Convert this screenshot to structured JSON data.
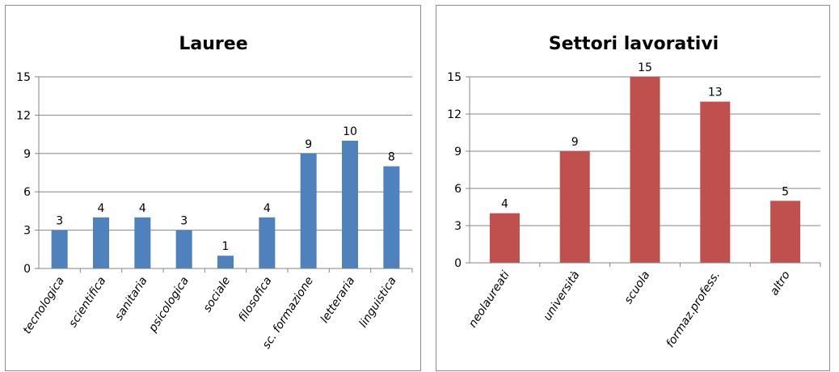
{
  "chart_data": [
    {
      "type": "bar",
      "title": "Lauree",
      "categories": [
        "tecnologica",
        "scientifica",
        "sanitaria",
        "psicologica",
        "sociale",
        "filosofica",
        "sc. formazione",
        "letteraria",
        "linguistica"
      ],
      "values": [
        3,
        4,
        4,
        3,
        1,
        4,
        9,
        10,
        8
      ],
      "yticks": [
        "0",
        "3",
        "6",
        "9",
        "12",
        "15"
      ],
      "ylim": [
        0,
        15
      ],
      "grid": true,
      "legend": "none",
      "bar_color": "#4f81bd"
    },
    {
      "type": "bar",
      "title": "Settori lavorativi",
      "categories": [
        "neolaureati",
        "università",
        "scuola",
        "formaz.profess.",
        "altro"
      ],
      "values": [
        4,
        9,
        15,
        13,
        5
      ],
      "yticks": [
        "0",
        "3",
        "6",
        "9",
        "12",
        "15"
      ],
      "ylim": [
        0,
        15
      ],
      "grid": true,
      "legend": "none",
      "bar_color": "#c0504d"
    }
  ]
}
